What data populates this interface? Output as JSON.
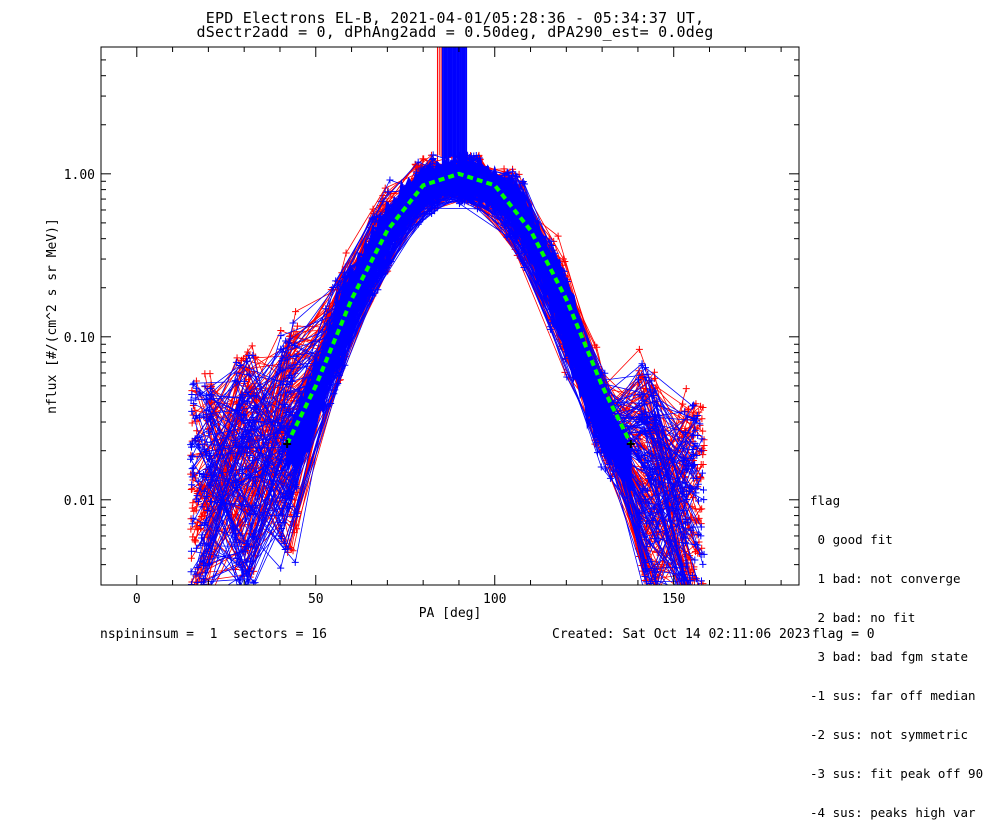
{
  "chart_data": {
    "type": "line",
    "title": "EPD Electrons EL-B, 2021-04-01/05:28:36 - 05:34:37 UT,",
    "subtitle": "dSectr2add = 0, dPhAng2add = 0.50deg, dPA290_est=   0.0deg",
    "xlabel": "PA [deg]",
    "ylabel": "nflux [#/(cm^2 s sr MeV)]",
    "xlim": [
      -10,
      185
    ],
    "ylim": [
      0.003,
      6
    ],
    "yscale": "log",
    "xticks": [
      "0",
      "50",
      "100",
      "150"
    ],
    "yticks": [
      "0.01",
      "0.10",
      "1.00"
    ],
    "series": [
      {
        "color": "#ff0000",
        "marker": "+",
        "x": [
          19,
          30,
          45,
          60,
          75,
          85,
          95,
          105,
          118,
          130,
          140,
          150,
          160
        ],
        "y": [
          0.012,
          0.015,
          0.025,
          0.2,
          0.7,
          0.95,
          0.95,
          0.7,
          0.2,
          0.03,
          0.015,
          0.01,
          0.008
        ]
      },
      {
        "color": "#0000ff",
        "marker": "+",
        "x": [
          19,
          30,
          45,
          60,
          75,
          85,
          95,
          105,
          118,
          130,
          140,
          150,
          160
        ],
        "y": [
          0.011,
          0.014,
          0.022,
          0.18,
          0.68,
          0.93,
          0.93,
          0.68,
          0.18,
          0.028,
          0.014,
          0.009,
          0.007
        ]
      },
      {
        "color": "#00ff00",
        "style": "dashed-fit",
        "x": [
          42,
          50,
          60,
          70,
          80,
          90,
          100,
          110,
          120,
          130,
          138
        ],
        "y": [
          0.022,
          0.05,
          0.17,
          0.45,
          0.85,
          1.0,
          0.85,
          0.45,
          0.17,
          0.05,
          0.022
        ]
      }
    ]
  },
  "legend": {
    "title": "flag",
    "items": [
      " 0 good fit",
      " 1 bad: not converge",
      " 2 bad: no fit",
      " 3 bad: bad fgm state",
      "-1 sus: far off median",
      "-2 sus: not symmetric",
      "-3 sus: fit peak off 90",
      "-4 sus: peaks high var"
    ]
  },
  "footer": {
    "left": "nspininsum =  1  sectors = 16",
    "created": "Created: Sat Oct 14 02:11:06 2023",
    "flag": "flag = 0"
  }
}
